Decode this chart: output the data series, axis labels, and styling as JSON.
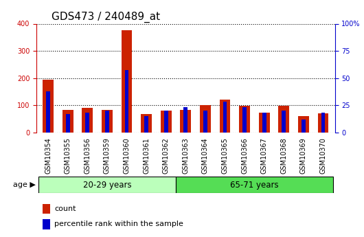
{
  "title": "GDS473 / 240489_at",
  "categories": [
    "GSM10354",
    "GSM10355",
    "GSM10356",
    "GSM10359",
    "GSM10360",
    "GSM10361",
    "GSM10362",
    "GSM10363",
    "GSM10364",
    "GSM10365",
    "GSM10366",
    "GSM10367",
    "GSM10368",
    "GSM10369",
    "GSM10370"
  ],
  "count_values": [
    195,
    83,
    90,
    82,
    375,
    67,
    80,
    83,
    100,
    120,
    97,
    72,
    97,
    60,
    70
  ],
  "percentile_values": [
    38,
    17,
    18,
    20,
    57,
    15,
    20,
    23,
    20,
    28,
    23,
    18,
    20,
    12,
    18
  ],
  "group1_label": "20-29 years",
  "group2_label": "65-71 years",
  "group1_count": 7,
  "group2_count": 8,
  "left_axis_color": "#cc0000",
  "right_axis_color": "#0000cc",
  "bar_color_red": "#cc2200",
  "bar_color_blue": "#0000cc",
  "ylim_left": [
    0,
    400
  ],
  "ylim_right": [
    0,
    100
  ],
  "left_ticks": [
    0,
    100,
    200,
    300,
    400
  ],
  "right_ticks": [
    0,
    25,
    50,
    75,
    100
  ],
  "right_tick_labels": [
    "0",
    "25",
    "50",
    "75",
    "100%"
  ],
  "group1_color": "#bbffbb",
  "group2_color": "#55dd55",
  "legend_count_color": "#cc2200",
  "legend_pct_color": "#0000cc",
  "legend_count_label": "count",
  "legend_pct_label": "percentile rank within the sample",
  "bg_color": "#ffffff",
  "title_fontsize": 11,
  "tick_fontsize": 7,
  "bar_width": 0.55,
  "blue_bar_width": 0.2
}
